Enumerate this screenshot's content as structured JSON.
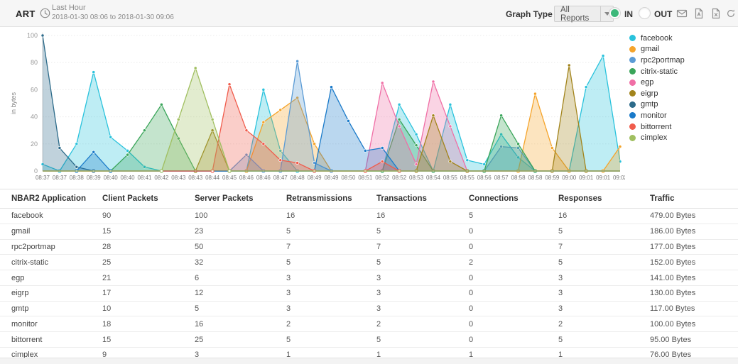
{
  "header": {
    "title": "ART",
    "time_range_label": "Last Hour",
    "time_range": "2018-01-30 08:06 to 2018-01-30 09:06",
    "graph_type_label": "Graph Type",
    "graph_type_value": "All Reports",
    "in_label": "IN",
    "out_label": "OUT",
    "in_selected": true,
    "accent_green": "#3cb87a",
    "icons": [
      "mail-icon",
      "export-pdf-icon",
      "export-excel-icon",
      "refresh-icon",
      "pin-icon"
    ]
  },
  "chart_data": {
    "type": "area",
    "title": "",
    "xlabel": "",
    "ylabel": "in bytes",
    "ylim": [
      0,
      100
    ],
    "yticks": [
      0,
      20,
      40,
      60,
      80,
      100
    ],
    "grid": true,
    "legend_position": "right",
    "x_labels": [
      "08:37",
      "08:37",
      "08:38",
      "08:39",
      "08:40",
      "08:40",
      "08:41",
      "08:42",
      "08:43",
      "08:43",
      "08:44",
      "08:45",
      "08:46",
      "08:46",
      "08:47",
      "08:48",
      "08:49",
      "08:49",
      "08:50",
      "08:51",
      "08:52",
      "08:52",
      "08:53",
      "08:54",
      "08:55",
      "08:55",
      "08:56",
      "08:57",
      "08:58",
      "08:58",
      "08:59",
      "09:00",
      "09:01",
      "09:01",
      "09:02"
    ],
    "series": [
      {
        "name": "facebook",
        "color": "#29c2dc",
        "values": [
          5,
          0,
          20,
          73,
          25,
          15,
          3,
          0,
          0,
          0,
          0,
          0,
          0,
          60,
          15,
          0,
          0,
          0,
          0,
          0,
          0,
          49,
          27,
          0,
          49,
          8,
          5,
          27,
          10,
          0,
          0,
          0,
          62,
          85,
          7
        ]
      },
      {
        "name": "gmail",
        "color": "#f5a42b",
        "values": [
          0,
          0,
          0,
          0,
          0,
          0,
          0,
          0,
          0,
          0,
          0,
          0,
          0,
          36,
          45,
          54,
          20,
          0,
          0,
          0,
          0,
          0,
          0,
          0,
          0,
          0,
          0,
          0,
          0,
          57,
          17,
          0,
          0,
          0,
          18
        ]
      },
      {
        "name": "rpc2portmap",
        "color": "#5b9bd5",
        "values": [
          0,
          0,
          0,
          0,
          0,
          0,
          0,
          0,
          0,
          0,
          0,
          0,
          12,
          0,
          0,
          81,
          6,
          0,
          0,
          0,
          0,
          0,
          0,
          0,
          0,
          0,
          0,
          18,
          17,
          0,
          0,
          0,
          0,
          0,
          0
        ]
      },
      {
        "name": "citrix-static",
        "color": "#3aa55a",
        "values": [
          0,
          0,
          0,
          0,
          0,
          12,
          30,
          49,
          24,
          0,
          0,
          0,
          0,
          0,
          0,
          0,
          0,
          0,
          0,
          0,
          0,
          38,
          19,
          0,
          0,
          0,
          0,
          41,
          20,
          0,
          0,
          0,
          0,
          0,
          0
        ]
      },
      {
        "name": "egp",
        "color": "#f06fa6",
        "values": [
          0,
          0,
          0,
          0,
          0,
          0,
          0,
          0,
          0,
          0,
          0,
          0,
          0,
          0,
          0,
          0,
          0,
          0,
          0,
          0,
          65,
          33,
          5,
          66,
          33,
          0,
          0,
          0,
          0,
          0,
          0,
          0,
          0,
          0,
          0
        ]
      },
      {
        "name": "eigrp",
        "color": "#a2841c",
        "values": [
          0,
          0,
          0,
          0,
          0,
          0,
          0,
          0,
          0,
          0,
          30,
          0,
          0,
          0,
          0,
          0,
          0,
          0,
          0,
          0,
          0,
          0,
          0,
          41,
          7,
          0,
          0,
          0,
          0,
          0,
          0,
          78,
          0,
          0,
          0
        ]
      },
      {
        "name": "gmtp",
        "color": "#2d6b8a",
        "values": [
          100,
          17,
          3,
          0,
          0,
          0,
          0,
          0,
          0,
          0,
          0,
          0,
          0,
          0,
          0,
          0,
          0,
          0,
          0,
          0,
          0,
          0,
          0,
          0,
          0,
          0,
          0,
          0,
          0,
          0,
          0,
          0,
          0,
          0,
          0
        ]
      },
      {
        "name": "monitor",
        "color": "#1a7ac9",
        "values": [
          0,
          0,
          0,
          14,
          0,
          0,
          0,
          0,
          0,
          0,
          0,
          0,
          0,
          0,
          0,
          0,
          0,
          62,
          37,
          15,
          17,
          0,
          0,
          0,
          0,
          0,
          0,
          0,
          0,
          0,
          0,
          0,
          0,
          0,
          0
        ]
      },
      {
        "name": "bittorrent",
        "color": "#f05c4c",
        "values": [
          0,
          0,
          0,
          0,
          0,
          0,
          0,
          0,
          0,
          0,
          0,
          64,
          30,
          20,
          8,
          6,
          0,
          0,
          0,
          0,
          7,
          0,
          0,
          0,
          0,
          0,
          0,
          0,
          0,
          0,
          0,
          0,
          0,
          0,
          0
        ]
      },
      {
        "name": "cimplex",
        "color": "#a0bf60",
        "values": [
          0,
          0,
          0,
          0,
          0,
          0,
          0,
          0,
          38,
          76,
          38,
          0,
          0,
          0,
          0,
          0,
          0,
          0,
          0,
          0,
          0,
          0,
          0,
          0,
          0,
          0,
          0,
          0,
          0,
          0,
          0,
          0,
          0,
          0,
          0
        ]
      }
    ]
  },
  "table": {
    "columns": [
      "NBAR2 Application",
      "Client Packets",
      "Server Packets",
      "Retransmissions",
      "Transactions",
      "Connections",
      "Responses",
      "Traffic"
    ],
    "rows": [
      [
        "facebook",
        "90",
        "100",
        "16",
        "16",
        "5",
        "16",
        "479.00 Bytes"
      ],
      [
        "gmail",
        "15",
        "23",
        "5",
        "5",
        "0",
        "5",
        "186.00 Bytes"
      ],
      [
        "rpc2portmap",
        "28",
        "50",
        "7",
        "7",
        "0",
        "7",
        "177.00 Bytes"
      ],
      [
        "citrix-static",
        "25",
        "32",
        "5",
        "5",
        "2",
        "5",
        "152.00 Bytes"
      ],
      [
        "egp",
        "21",
        "6",
        "3",
        "3",
        "0",
        "3",
        "141.00 Bytes"
      ],
      [
        "eigrp",
        "17",
        "12",
        "3",
        "3",
        "0",
        "3",
        "130.00 Bytes"
      ],
      [
        "gmtp",
        "10",
        "5",
        "3",
        "3",
        "0",
        "3",
        "117.00 Bytes"
      ],
      [
        "monitor",
        "18",
        "16",
        "2",
        "2",
        "0",
        "2",
        "100.00 Bytes"
      ],
      [
        "bittorrent",
        "15",
        "25",
        "5",
        "5",
        "0",
        "5",
        "95.00 Bytes"
      ],
      [
        "cimplex",
        "9",
        "3",
        "1",
        "1",
        "1",
        "1",
        "76.00 Bytes"
      ]
    ]
  }
}
